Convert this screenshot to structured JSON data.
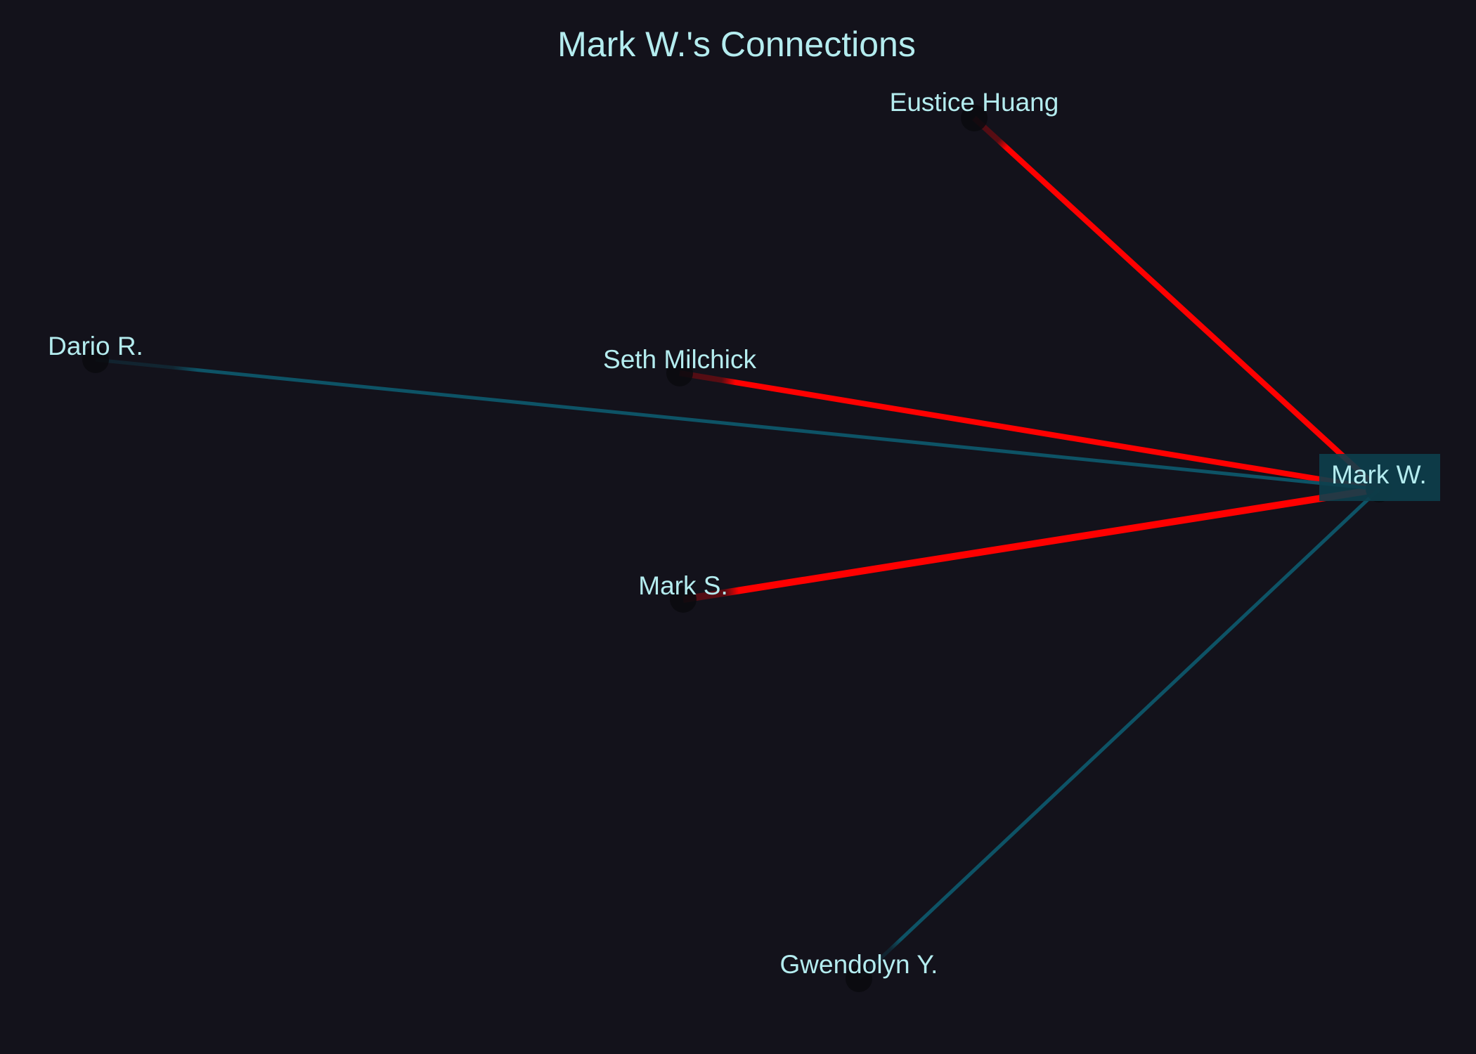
{
  "title": "Mark W.'s Connections",
  "colors": {
    "background": "#13121b",
    "text": "#b4ecef",
    "strong_edge": "#ff0000",
    "weak_edge": "#0d5366",
    "focus_box": "#0d3f4d",
    "node_fill": "#0a0a0e"
  },
  "focus_node": "Mark W.",
  "nodes": [
    {
      "id": "mark-w",
      "label": "Mark W.",
      "focus": true
    },
    {
      "id": "eustice-huang",
      "label": "Eustice Huang"
    },
    {
      "id": "dario-r",
      "label": "Dario R."
    },
    {
      "id": "seth-milchick",
      "label": "Seth Milchick"
    },
    {
      "id": "mark-s",
      "label": "Mark S."
    },
    {
      "id": "gwendolyn-y",
      "label": "Gwendolyn Y."
    }
  ],
  "edges": [
    {
      "source": "mark-w",
      "target": "eustice-huang",
      "kind": "strong"
    },
    {
      "source": "mark-w",
      "target": "seth-milchick",
      "kind": "strong"
    },
    {
      "source": "mark-w",
      "target": "mark-s",
      "kind": "strong"
    },
    {
      "source": "mark-w",
      "target": "dario-r",
      "kind": "weak"
    },
    {
      "source": "mark-w",
      "target": "gwendolyn-y",
      "kind": "weak"
    }
  ]
}
